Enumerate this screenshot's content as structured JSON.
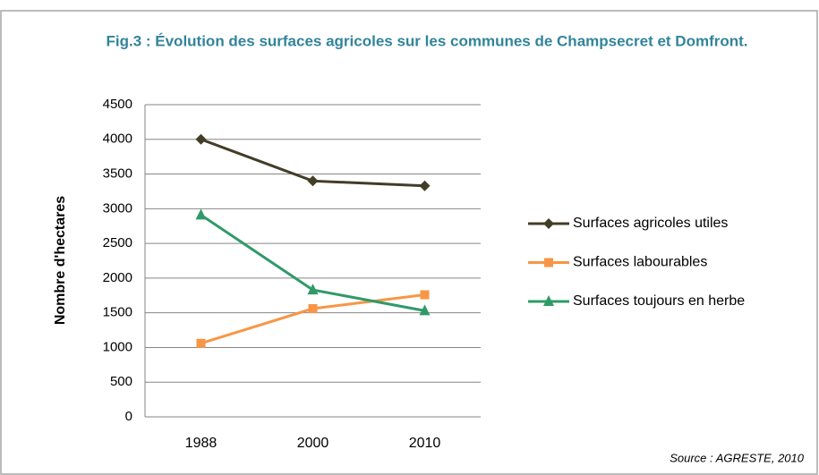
{
  "chart_data": {
    "type": "line",
    "title": "Fig.3 : Évolution des surfaces agricoles sur les communes de Champsecret et Domfront.",
    "y_label": "Nombre d'hectares",
    "source": "Source : AGRESTE, 2010",
    "categories": [
      "1988",
      "2000",
      "2010"
    ],
    "series": [
      {
        "name": "Surfaces agricoles utiles",
        "color": "#433c27",
        "marker": "diamond",
        "values": [
          4000,
          3400,
          3330
        ]
      },
      {
        "name": "Surfaces labourables",
        "color": "#f79646",
        "marker": "square",
        "values": [
          1060,
          1560,
          1760
        ]
      },
      {
        "name": "Surfaces toujours en herbe",
        "color": "#2f9a68",
        "marker": "triangle",
        "values": [
          2910,
          1830,
          1530
        ]
      }
    ],
    "ylim": [
      0,
      4500
    ],
    "yticks": [
      0,
      500,
      1000,
      1500,
      2000,
      2500,
      3000,
      3500,
      4000,
      4500
    ],
    "grid": true,
    "legend": "right"
  }
}
